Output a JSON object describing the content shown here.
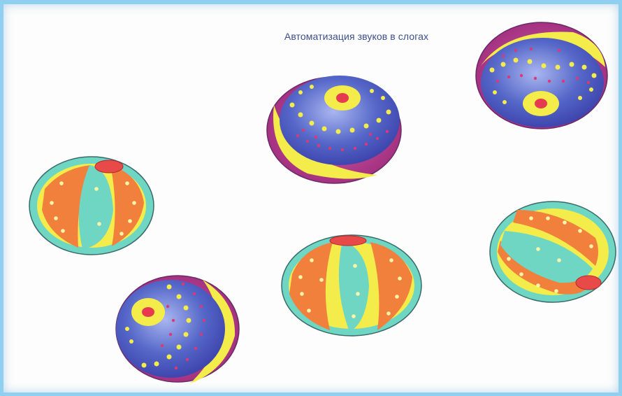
{
  "slide": {
    "title": "Автоматизация звуков в слогах"
  },
  "colors": {
    "frame": "#8fd0f0",
    "blue": "#5567c8",
    "magenta": "#b83a8a",
    "yellow": "#f4ec4a",
    "orange": "#f0803c",
    "teal": "#6fd6c4",
    "red": "#e83a4e"
  },
  "balls": [
    {
      "name": "ball-blue-top-center",
      "style": "blue"
    },
    {
      "name": "ball-blue-top-right",
      "style": "blue"
    },
    {
      "name": "ball-striped-left",
      "style": "striped"
    },
    {
      "name": "ball-striped-bottom-center",
      "style": "striped"
    },
    {
      "name": "ball-striped-right",
      "style": "striped"
    },
    {
      "name": "ball-blue-bottom-left",
      "style": "blue"
    }
  ]
}
